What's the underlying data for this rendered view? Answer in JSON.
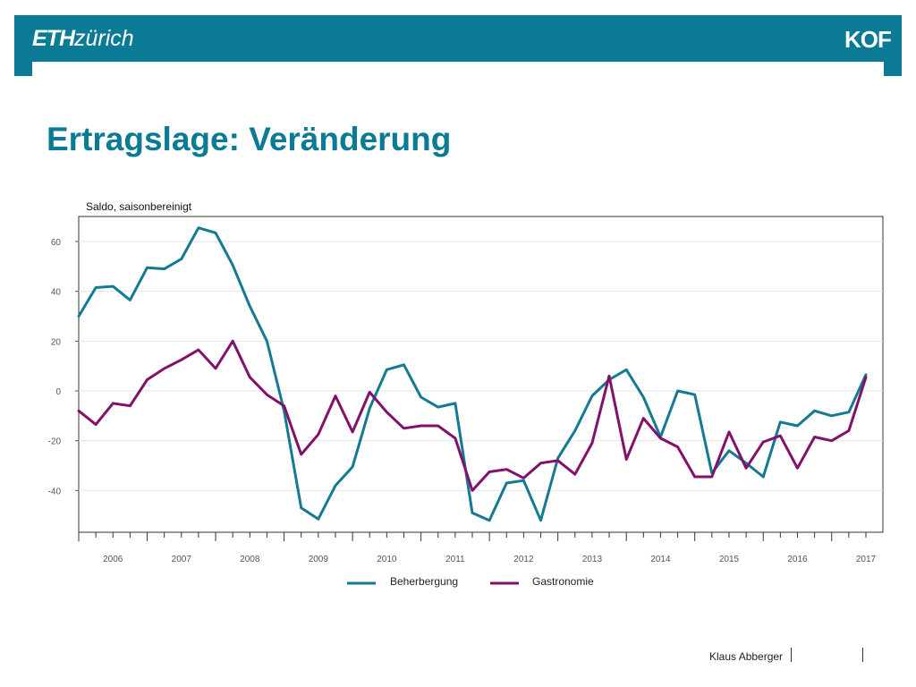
{
  "header": {
    "logo_eth_bold": "ETH",
    "logo_eth_light": "zürich",
    "logo_kof": "KOF",
    "bar_color": "#0a7a95"
  },
  "title": "Ertragslage: Veränderung",
  "footer": {
    "author": "Klaus Abberger"
  },
  "chart_data": {
    "type": "line",
    "ylabel": "Saldo, saisonbereinigt",
    "ylim": [
      -58,
      70
    ],
    "yticks": [
      60,
      40,
      20,
      0,
      -20,
      -40
    ],
    "xlim": [
      2005.5,
      2017.25
    ],
    "year_ticks": [
      "2006",
      "2007",
      "2008",
      "2009",
      "2010",
      "2011",
      "2012",
      "2013",
      "2014",
      "2015",
      "2016",
      "2017"
    ],
    "grid": "horizontal",
    "legend_position": "bottom-center",
    "x": [
      2005.5,
      2005.75,
      2006,
      2006.25,
      2006.5,
      2006.75,
      2007,
      2007.25,
      2007.5,
      2007.75,
      2008,
      2008.25,
      2008.5,
      2008.75,
      2009,
      2009.25,
      2009.5,
      2009.75,
      2010,
      2010.25,
      2010.5,
      2010.75,
      2011,
      2011.25,
      2011.5,
      2011.75,
      2012,
      2012.25,
      2012.5,
      2012.75,
      2013,
      2013.25,
      2013.5,
      2013.75,
      2014,
      2014.25,
      2014.5,
      2014.75,
      2015,
      2015.25,
      2015.5,
      2015.75,
      2016,
      2016.25,
      2016.5,
      2016.75,
      2017
    ],
    "series": [
      {
        "name": "Beherbergung",
        "color": "#147a92",
        "values": [
          30,
          41.5,
          42,
          36.5,
          49.5,
          49,
          53,
          65.5,
          63.5,
          50.5,
          34,
          20,
          -8,
          -47,
          -51.5,
          -38,
          -30.5,
          -7,
          8.5,
          10.5,
          -2.5,
          -6.5,
          -5,
          -49,
          -52,
          -37,
          -36,
          -52,
          -27,
          -16,
          -2,
          4.5,
          8.5,
          -2.5,
          -18.5,
          0,
          -1.5,
          -33,
          -24,
          -29,
          -34.5,
          -12.5,
          -14,
          -8,
          -10,
          -8.5,
          6.5
        ]
      },
      {
        "name": "Gastronomie",
        "color": "#82116b",
        "values": [
          -8,
          -13.5,
          -5,
          -6,
          4.5,
          9,
          12.5,
          16.5,
          9,
          20,
          5.5,
          -1.5,
          -6,
          -25.5,
          -17.5,
          -2,
          -16.5,
          -0.5,
          -8.5,
          -15,
          -14,
          -14,
          -19,
          -40,
          -32.5,
          -31.5,
          -35,
          -29,
          -28,
          -33.5,
          -21,
          6,
          -27.5,
          -11,
          -19,
          -22.5,
          -34.5,
          -34.5,
          -16.5,
          -31,
          -20.5,
          -18,
          -31,
          -18.5,
          -20,
          -16,
          5.5
        ]
      }
    ]
  }
}
